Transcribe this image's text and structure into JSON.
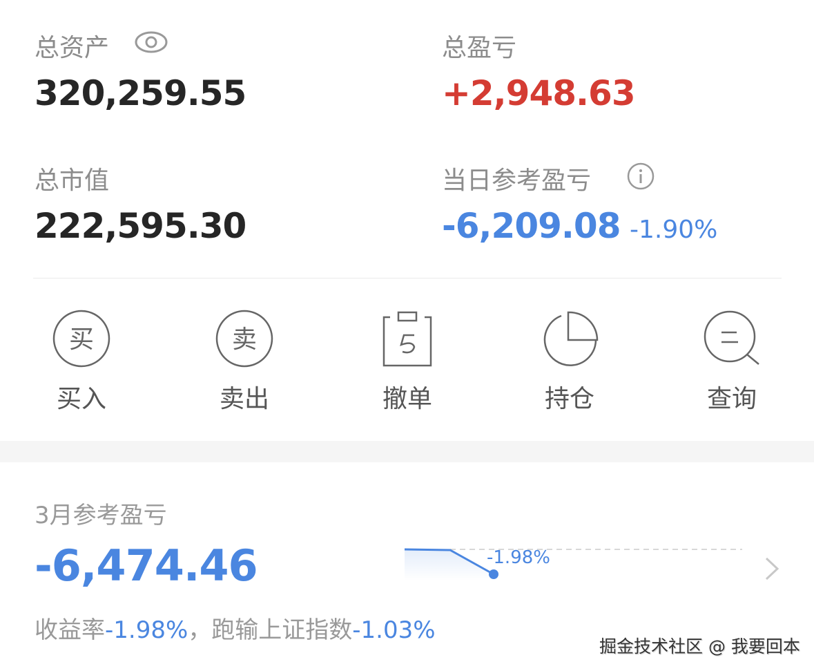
{
  "summary": {
    "total_assets_label": "总资产",
    "total_assets_value": "320,259.55",
    "total_pnl_label": "总盈亏",
    "total_pnl_value": "+2,948.63",
    "market_value_label": "总市值",
    "market_value_value": "222,595.30",
    "daily_pnl_label": "当日参考盈亏",
    "daily_pnl_value": "-6,209.08",
    "daily_pnl_pct": "-1.90%"
  },
  "actions": [
    {
      "label": "买入",
      "icon_text": "买",
      "icon": "buy-icon"
    },
    {
      "label": "卖出",
      "icon_text": "卖",
      "icon": "sell-icon"
    },
    {
      "label": "撤单",
      "icon": "cancel-order-icon"
    },
    {
      "label": "持仓",
      "icon": "pie-chart-icon"
    },
    {
      "label": "查询",
      "icon": "search-icon"
    }
  ],
  "monthly": {
    "title": "3月参考盈亏",
    "value": "-6,474.46",
    "chart_label": "-1.98%",
    "rate_label": "收益率",
    "rate_value": "-1.98%",
    "compare_label": "，跑输上证指数",
    "compare_value": "-1.03%"
  },
  "colors": {
    "gain": "#d43c33",
    "loss": "#4a86e0"
  },
  "watermark": "掘金技术社区 @ 我要回本"
}
